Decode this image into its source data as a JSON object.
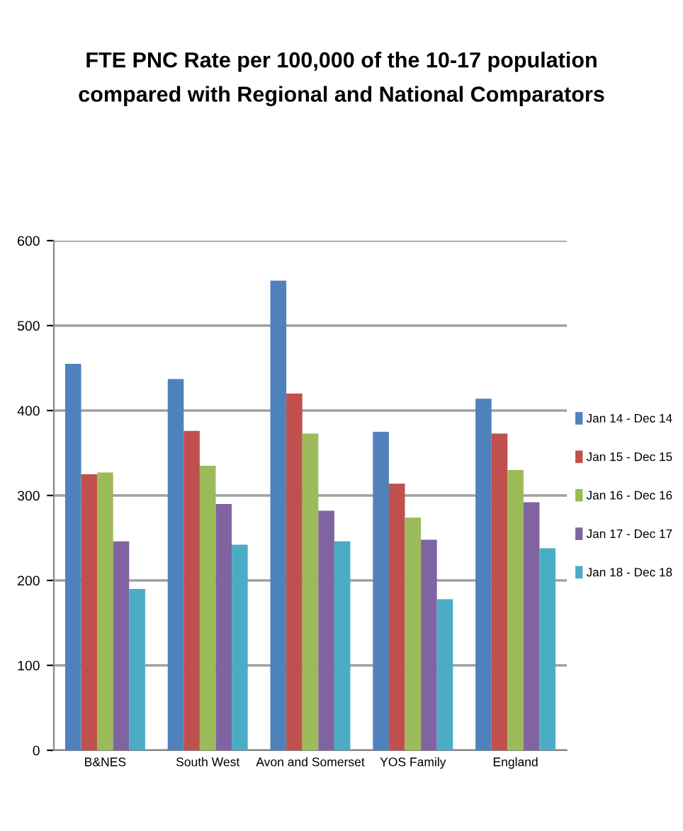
{
  "chart_data": {
    "type": "bar",
    "title": "FTE PNC Rate per 100,000 of the 10-17 population\ncompared with Regional and National Comparators",
    "categories": [
      "B&NES",
      "South West",
      "Avon and Somerset",
      "YOS Family",
      "England"
    ],
    "series": [
      {
        "name": "Jan 14 - Dec 14",
        "color": "#4f81bd",
        "values": [
          455,
          437,
          553,
          375,
          414
        ]
      },
      {
        "name": "Jan 15 - Dec 15",
        "color": "#c0504d",
        "values": [
          325,
          376,
          420,
          314,
          373
        ]
      },
      {
        "name": "Jan 16 - Dec 16",
        "color": "#9bbb59",
        "values": [
          327,
          335,
          373,
          274,
          330
        ]
      },
      {
        "name": "Jan 17 - Dec 17",
        "color": "#8064a2",
        "values": [
          246,
          290,
          282,
          248,
          292
        ]
      },
      {
        "name": "Jan 18 - Dec 18",
        "color": "#4bacc6",
        "values": [
          190,
          242,
          246,
          178,
          238
        ]
      }
    ],
    "ylim": [
      0,
      600
    ],
    "yticks": [
      0,
      100,
      200,
      300,
      400,
      500,
      600
    ],
    "grid": "y",
    "legend": "right"
  }
}
